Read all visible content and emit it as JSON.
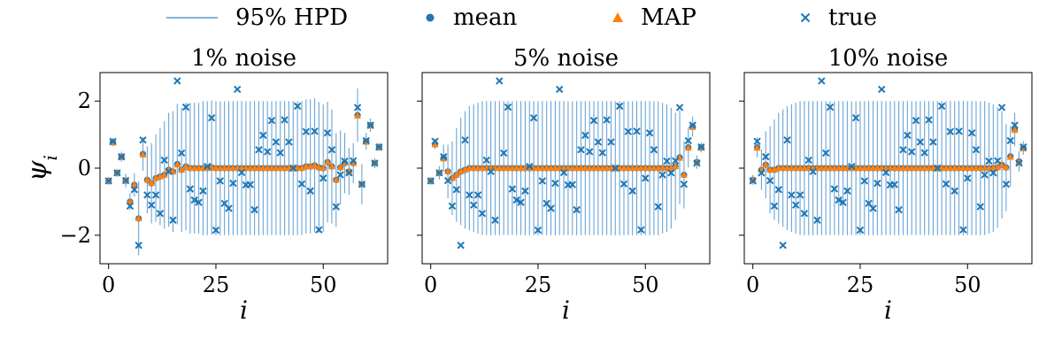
{
  "legend": {
    "items": [
      {
        "label": "95% HPD",
        "marker": "line"
      },
      {
        "label": "mean",
        "marker": "circle"
      },
      {
        "label": "MAP",
        "marker": "triangle"
      },
      {
        "label": "true",
        "marker": "x"
      }
    ]
  },
  "colors": {
    "hpd": "#5b9bd0",
    "mean": "#1f77b4",
    "map": "#ff7f0e",
    "true": "#1f77b4"
  },
  "chart_data": [
    {
      "type": "scatter",
      "title": "1% noise",
      "xlabel": "i",
      "ylabel": "ψ_i",
      "xlim": [
        -2,
        65
      ],
      "ylim": [
        -2.85,
        2.85
      ],
      "xticks": [
        0,
        25,
        50
      ],
      "yticks": [
        -2,
        0,
        2
      ],
      "ytick_labels": [
        "−2",
        "0",
        "2"
      ],
      "show_ytick_labels": true,
      "true_values": [
        -0.38,
        0.8,
        -0.14,
        0.34,
        -0.37,
        -1.13,
        -0.64,
        -2.3,
        0.84,
        -0.8,
        -1.1,
        -0.8,
        -1.35,
        0.24,
        -0.1,
        -1.55,
        2.6,
        0.45,
        1.82,
        -0.62,
        -0.95,
        -1.02,
        -0.68,
        0.05,
        1.5,
        -1.85,
        -0.38,
        -1.05,
        -1.2,
        -0.45,
        2.35,
        -0.13,
        -0.5,
        -0.49,
        -1.24,
        0.55,
        0.98,
        0.49,
        1.42,
        0.78,
        0.46,
        1.44,
        0.78,
        0.0,
        1.85,
        -0.47,
        1.09,
        -0.68,
        1.1,
        -1.84,
        -0.3,
        1.05,
        0.55,
        -1.15,
        -0.2,
        0.21,
        -0.14,
        0.22,
        1.81,
        -0.48,
        0.82,
        1.28,
        0.15,
        0.63
      ],
      "mean": [
        -0.38,
        0.78,
        -0.14,
        0.34,
        -0.37,
        -1.0,
        -0.5,
        -1.5,
        0.42,
        -0.35,
        -0.45,
        -0.3,
        -0.25,
        -0.2,
        -0.05,
        -0.1,
        0.12,
        -0.05,
        0.05,
        0.0,
        0.0,
        0.0,
        0.0,
        0.0,
        0.02,
        0.0,
        0.0,
        0.0,
        0.0,
        0.0,
        0.0,
        0.0,
        0.0,
        0.0,
        0.0,
        0.0,
        0.0,
        0.0,
        0.0,
        0.0,
        0.0,
        0.0,
        0.0,
        0.0,
        0.0,
        0.0,
        0.05,
        0.05,
        0.08,
        0.02,
        0.0,
        0.18,
        0.05,
        -0.35,
        0.02,
        0.15,
        -0.1,
        0.15,
        1.58,
        -0.48,
        0.8,
        1.28,
        0.15,
        0.63
      ],
      "map": [
        -0.38,
        0.76,
        -0.14,
        0.32,
        -0.37,
        -1.0,
        -0.5,
        -1.5,
        0.4,
        -0.35,
        -0.45,
        -0.3,
        -0.25,
        -0.2,
        -0.05,
        -0.1,
        0.1,
        -0.05,
        0.05,
        0.0,
        0.0,
        0.0,
        0.0,
        0.0,
        0.02,
        0.0,
        0.0,
        0.0,
        0.0,
        0.0,
        0.0,
        0.0,
        0.0,
        0.0,
        0.0,
        0.0,
        0.0,
        0.0,
        0.0,
        0.0,
        0.0,
        0.0,
        0.0,
        0.0,
        0.0,
        0.0,
        0.05,
        0.05,
        0.08,
        0.02,
        0.0,
        0.18,
        0.05,
        -0.35,
        0.02,
        0.15,
        -0.1,
        0.15,
        1.56,
        -0.48,
        0.78,
        1.26,
        0.15,
        0.61
      ],
      "hpd_half_width": [
        0.12,
        0.12,
        0.12,
        0.15,
        0.2,
        0.25,
        0.35,
        1.1,
        0.5,
        1.0,
        1.2,
        1.3,
        1.45,
        1.6,
        1.7,
        1.8,
        1.8,
        1.85,
        1.9,
        1.95,
        1.95,
        1.95,
        2.0,
        2.0,
        2.0,
        2.0,
        2.0,
        2.0,
        2.0,
        2.0,
        2.0,
        2.0,
        2.0,
        2.0,
        2.0,
        2.0,
        2.0,
        2.0,
        2.0,
        2.0,
        2.0,
        2.0,
        2.0,
        2.0,
        2.0,
        2.0,
        2.0,
        2.0,
        2.0,
        1.95,
        1.9,
        1.8,
        1.7,
        1.4,
        1.1,
        0.9,
        0.7,
        0.6,
        0.8,
        0.6,
        0.25,
        0.2,
        0.15,
        0.12
      ]
    },
    {
      "type": "scatter",
      "title": "5% noise",
      "xlabel": "i",
      "ylabel": "",
      "xlim": [
        -2,
        65
      ],
      "ylim": [
        -2.85,
        2.85
      ],
      "xticks": [
        0,
        25,
        50
      ],
      "yticks": [
        -2,
        0,
        2
      ],
      "ytick_labels": [
        "",
        "",
        ""
      ],
      "show_ytick_labels": false,
      "true_values": [
        -0.38,
        0.8,
        -0.14,
        0.34,
        -0.37,
        -1.13,
        -0.64,
        -2.3,
        0.84,
        -0.8,
        -1.1,
        -0.8,
        -1.35,
        0.24,
        -0.1,
        -1.55,
        2.6,
        0.45,
        1.82,
        -0.62,
        -0.95,
        -1.02,
        -0.68,
        0.05,
        1.5,
        -1.85,
        -0.38,
        -1.05,
        -1.2,
        -0.45,
        2.35,
        -0.13,
        -0.5,
        -0.49,
        -1.24,
        0.55,
        0.98,
        0.49,
        1.42,
        0.78,
        0.46,
        1.44,
        0.78,
        0.0,
        1.85,
        -0.47,
        1.09,
        -0.68,
        1.1,
        -1.84,
        -0.3,
        1.05,
        0.55,
        -1.15,
        -0.2,
        0.21,
        -0.14,
        0.22,
        1.81,
        -0.48,
        0.82,
        1.28,
        0.15,
        0.63
      ],
      "mean": [
        -0.38,
        0.72,
        -0.14,
        0.3,
        -0.1,
        -0.3,
        -0.2,
        -0.1,
        -0.05,
        0.0,
        0.0,
        0.0,
        0.0,
        0.0,
        0.0,
        0.0,
        0.0,
        0.0,
        0.0,
        0.0,
        0.0,
        0.0,
        0.0,
        0.0,
        0.0,
        0.0,
        0.0,
        0.0,
        0.0,
        0.0,
        0.0,
        0.0,
        0.0,
        0.0,
        0.0,
        0.0,
        0.0,
        0.0,
        0.0,
        0.0,
        0.0,
        0.0,
        0.0,
        0.0,
        0.0,
        0.0,
        0.0,
        0.0,
        0.0,
        0.0,
        0.0,
        0.0,
        0.0,
        0.0,
        0.0,
        0.0,
        0.0,
        0.05,
        0.32,
        -0.2,
        0.62,
        1.24,
        0.18,
        0.62
      ],
      "map": [
        -0.38,
        0.7,
        -0.14,
        0.28,
        -0.1,
        -0.3,
        -0.2,
        -0.1,
        -0.05,
        0.0,
        0.0,
        0.0,
        0.0,
        0.0,
        0.0,
        0.0,
        0.0,
        0.0,
        0.0,
        0.0,
        0.0,
        0.0,
        0.0,
        0.0,
        0.0,
        0.0,
        0.0,
        0.0,
        0.0,
        0.0,
        0.0,
        0.0,
        0.0,
        0.0,
        0.0,
        0.0,
        0.0,
        0.0,
        0.0,
        0.0,
        0.0,
        0.0,
        0.0,
        0.0,
        0.0,
        0.0,
        0.0,
        0.0,
        0.0,
        0.0,
        0.0,
        0.0,
        0.0,
        0.0,
        0.0,
        0.0,
        0.0,
        0.05,
        0.3,
        -0.2,
        0.6,
        1.22,
        0.16,
        0.6
      ],
      "hpd_half_width": [
        0.12,
        0.15,
        0.2,
        0.4,
        0.8,
        1.1,
        1.4,
        1.6,
        1.75,
        1.85,
        1.9,
        1.95,
        2.0,
        2.0,
        2.0,
        2.0,
        2.0,
        2.0,
        2.0,
        2.0,
        2.0,
        2.0,
        2.0,
        2.0,
        2.0,
        2.0,
        2.0,
        2.0,
        2.0,
        2.0,
        2.0,
        2.0,
        2.0,
        2.0,
        2.0,
        2.0,
        2.0,
        2.0,
        2.0,
        2.0,
        2.0,
        2.0,
        2.0,
        2.0,
        2.0,
        2.0,
        2.0,
        2.0,
        2.0,
        2.0,
        2.0,
        2.0,
        2.0,
        2.0,
        1.95,
        1.9,
        1.8,
        1.6,
        1.4,
        1.0,
        0.6,
        0.3,
        0.2,
        0.15
      ]
    },
    {
      "type": "scatter",
      "title": "10% noise",
      "xlabel": "i",
      "ylabel": "",
      "xlim": [
        -2,
        65
      ],
      "ylim": [
        -2.85,
        2.85
      ],
      "xticks": [
        0,
        25,
        50
      ],
      "yticks": [
        -2,
        0,
        2
      ],
      "ytick_labels": [
        "",
        "",
        ""
      ],
      "show_ytick_labels": false,
      "true_values": [
        -0.38,
        0.8,
        -0.14,
        0.34,
        -0.37,
        -1.13,
        -0.64,
        -2.3,
        0.84,
        -0.8,
        -1.1,
        -0.8,
        -1.35,
        0.24,
        -0.1,
        -1.55,
        2.6,
        0.45,
        1.82,
        -0.62,
        -0.95,
        -1.02,
        -0.68,
        0.05,
        1.5,
        -1.85,
        -0.38,
        -1.05,
        -1.2,
        -0.45,
        2.35,
        -0.13,
        -0.5,
        -0.49,
        -1.24,
        0.55,
        0.98,
        0.49,
        1.42,
        0.78,
        0.46,
        1.44,
        0.78,
        0.0,
        1.85,
        -0.47,
        1.09,
        -0.68,
        1.1,
        -1.84,
        -0.3,
        1.05,
        0.55,
        -1.15,
        -0.2,
        0.21,
        -0.14,
        0.22,
        1.81,
        -0.48,
        0.82,
        1.28,
        0.15,
        0.63
      ],
      "mean": [
        -0.35,
        0.62,
        -0.05,
        0.1,
        -0.05,
        -0.05,
        0.0,
        0.0,
        0.0,
        0.0,
        0.0,
        0.0,
        0.0,
        0.0,
        0.0,
        0.0,
        0.0,
        0.0,
        0.0,
        0.0,
        0.0,
        0.0,
        0.0,
        0.0,
        0.0,
        0.0,
        0.0,
        0.0,
        0.0,
        0.0,
        0.0,
        0.0,
        0.0,
        0.0,
        0.0,
        0.0,
        0.0,
        0.0,
        0.0,
        0.0,
        0.0,
        0.0,
        0.0,
        0.0,
        0.0,
        0.0,
        0.0,
        0.0,
        0.0,
        0.0,
        0.0,
        0.0,
        0.0,
        0.0,
        0.0,
        0.0,
        0.0,
        0.02,
        0.1,
        0.02,
        0.35,
        1.15,
        0.2,
        0.6
      ],
      "map": [
        -0.35,
        0.6,
        -0.05,
        0.1,
        -0.05,
        -0.05,
        0.0,
        0.0,
        0.0,
        0.0,
        0.0,
        0.0,
        0.0,
        0.0,
        0.0,
        0.0,
        0.0,
        0.0,
        0.0,
        0.0,
        0.0,
        0.0,
        0.0,
        0.0,
        0.0,
        0.0,
        0.0,
        0.0,
        0.0,
        0.0,
        0.0,
        0.0,
        0.0,
        0.0,
        0.0,
        0.0,
        0.0,
        0.0,
        0.0,
        0.0,
        0.0,
        0.0,
        0.0,
        0.0,
        0.0,
        0.0,
        0.0,
        0.0,
        0.0,
        0.0,
        0.0,
        0.0,
        0.0,
        0.0,
        0.0,
        0.0,
        0.0,
        0.02,
        0.1,
        0.02,
        0.33,
        1.13,
        0.18,
        0.58
      ],
      "hpd_half_width": [
        0.15,
        0.3,
        0.6,
        1.0,
        1.3,
        1.5,
        1.65,
        1.75,
        1.85,
        1.9,
        1.95,
        2.0,
        2.0,
        2.0,
        2.0,
        2.0,
        2.0,
        2.0,
        2.0,
        2.0,
        2.0,
        2.0,
        2.0,
        2.0,
        2.0,
        2.0,
        2.0,
        2.0,
        2.0,
        2.0,
        2.0,
        2.0,
        2.0,
        2.0,
        2.0,
        2.0,
        2.0,
        2.0,
        2.0,
        2.0,
        2.0,
        2.0,
        2.0,
        2.0,
        2.0,
        2.0,
        2.0,
        2.0,
        2.0,
        2.0,
        2.0,
        2.0,
        2.0,
        2.0,
        2.0,
        1.95,
        1.9,
        1.8,
        1.6,
        1.3,
        0.9,
        0.5,
        0.3,
        0.2
      ]
    }
  ]
}
